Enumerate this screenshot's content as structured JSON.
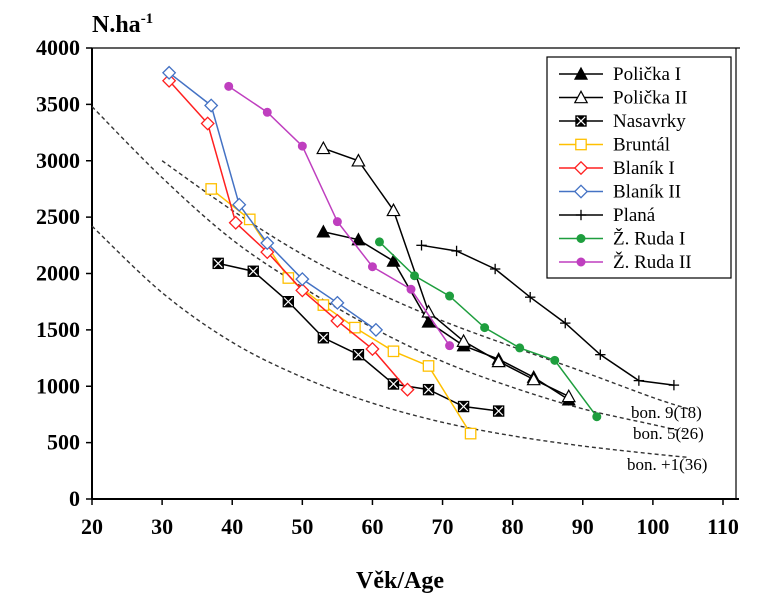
{
  "chart_data": {
    "type": "line",
    "ylabel": "N.ha",
    "ylabel_sup": "-1",
    "xlabel": "Věk/Age",
    "xlim": [
      20,
      110
    ],
    "ylim": [
      0,
      4000
    ],
    "xticks": [
      20,
      30,
      40,
      50,
      60,
      70,
      80,
      90,
      100,
      110
    ],
    "yticks": [
      0,
      500,
      1000,
      1500,
      2000,
      2500,
      3000,
      3500,
      4000
    ],
    "legend_position": "top-right",
    "series": [
      {
        "name": "Polička I",
        "color": "#000000",
        "marker": "triangle-filled",
        "x": [
          53,
          58,
          63,
          68,
          73,
          78,
          83,
          88
        ],
        "y": [
          2370,
          2300,
          2110,
          1570,
          1360,
          1240,
          1080,
          880
        ]
      },
      {
        "name": "Polička II",
        "color": "#000000",
        "marker": "triangle-open",
        "x": [
          53,
          58,
          63,
          68,
          73,
          78,
          83,
          88
        ],
        "y": [
          3110,
          3000,
          2560,
          1660,
          1400,
          1220,
          1060,
          910
        ]
      },
      {
        "name": "Nasavrky",
        "color": "#000000",
        "marker": "square-x",
        "x": [
          38,
          43,
          48,
          53,
          58,
          63,
          68,
          73,
          78
        ],
        "y": [
          2090,
          2020,
          1750,
          1430,
          1280,
          1020,
          970,
          820,
          780
        ]
      },
      {
        "name": "Bruntál",
        "color": "#ffc000",
        "marker": "square-open",
        "x": [
          37,
          42.5,
          48,
          53,
          57.5,
          63,
          68,
          74
        ],
        "y": [
          2750,
          2480,
          1960,
          1720,
          1520,
          1310,
          1180,
          580
        ]
      },
      {
        "name": "Blaník I",
        "color": "#ff2020",
        "marker": "diamond-open",
        "x": [
          31,
          36.5,
          40.5,
          45,
          50,
          55,
          60,
          65
        ],
        "y": [
          3710,
          3330,
          2450,
          2190,
          1850,
          1580,
          1330,
          970
        ]
      },
      {
        "name": "Blaník II",
        "color": "#4472c4",
        "marker": "diamond-open",
        "x": [
          31,
          37,
          41,
          45,
          50,
          55,
          60.5
        ],
        "y": [
          3780,
          3490,
          2610,
          2270,
          1950,
          1740,
          1500
        ]
      },
      {
        "name": "Planá",
        "color": "#000000",
        "marker": "plus",
        "x": [
          67,
          72,
          77.5,
          82.5,
          87.5,
          92.5,
          98,
          103
        ],
        "y": [
          2250,
          2200,
          2040,
          1790,
          1560,
          1280,
          1050,
          1010
        ]
      },
      {
        "name": "Ž. Ruda I",
        "color": "#1e9e3e",
        "marker": "circle-filled",
        "x": [
          61,
          66,
          71,
          76,
          81,
          86,
          92
        ],
        "y": [
          2280,
          1980,
          1800,
          1520,
          1340,
          1230,
          730
        ]
      },
      {
        "name": "Ž. Ruda II",
        "color": "#bf3fbf",
        "marker": "circle-filled",
        "x": [
          39.5,
          45,
          50,
          55,
          60,
          65.5,
          71
        ],
        "y": [
          3660,
          3430,
          3130,
          2460,
          2060,
          1860,
          1360
        ]
      }
    ],
    "reference_curves": [
      {
        "name": "bon. 9(18)",
        "x": [
          30,
          40,
          50,
          60,
          70,
          80,
          90,
          100,
          105
        ],
        "y": [
          3000,
          2560,
          2170,
          1850,
          1580,
          1350,
          1130,
          900,
          800
        ]
      },
      {
        "name": "bon. 5(26)",
        "x": [
          20,
          30,
          40,
          50,
          60,
          70,
          80,
          90,
          100,
          105
        ],
        "y": [
          3480,
          2850,
          2300,
          1880,
          1520,
          1220,
          990,
          800,
          660,
          590
        ]
      },
      {
        "name": "bon. +1(36)",
        "x": [
          20,
          30,
          40,
          50,
          60,
          70,
          80,
          90,
          100,
          105
        ],
        "y": [
          2420,
          1830,
          1390,
          1080,
          850,
          680,
          560,
          470,
          400,
          370
        ]
      }
    ]
  }
}
